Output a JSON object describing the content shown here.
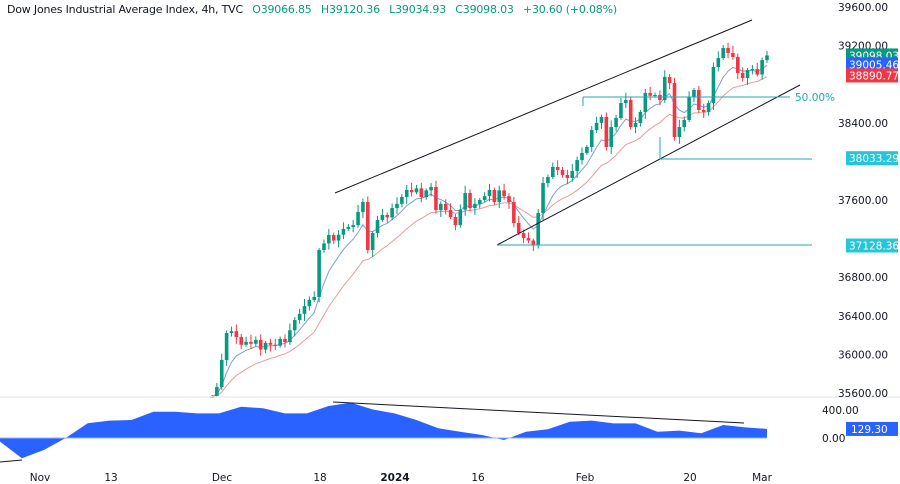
{
  "header": {
    "symbol": "Dow Jones Industrial Average Index, 4h, TVC",
    "open": "O39066.85",
    "high": "H39120.36",
    "low": "L39034.93",
    "close": "C39098.03",
    "change": "+30.60 (+0.08%)"
  },
  "colors": {
    "up": "#089981",
    "down": "#f23645",
    "ma_fast": "#7e9fd8",
    "ma_slow": "#e79b9b",
    "level": "#26a6b8",
    "indicator": "#2962ff"
  },
  "chart_data": [
    {
      "type": "candlestick",
      "title": "Dow Jones Industrial Average Index, 4h, TVC",
      "ylim": [
        35600,
        39600
      ],
      "y_ticks": [
        "39600.00",
        "39200.00",
        "38400.00",
        "37600.00",
        "36800.00",
        "36400.00",
        "36000.00",
        "35600.00"
      ],
      "x_ticks": [
        "Nov",
        "13",
        "Dec",
        "18",
        "2024",
        "16",
        "Feb",
        "20",
        "Mar"
      ],
      "close": [
        35560,
        35662,
        35942,
        36222,
        36240,
        36180,
        36100,
        36130,
        36110,
        36150,
        36050,
        36120,
        36100,
        36090,
        36160,
        36128,
        36250,
        36356,
        36420,
        36500,
        36564,
        36595,
        37082,
        37150,
        37237,
        37180,
        37240,
        37300,
        37320,
        37340,
        37476,
        37579,
        37082,
        37258,
        37393,
        37445,
        37420,
        37517,
        37560,
        37631,
        37704,
        37680,
        37720,
        37631,
        37700,
        37735,
        37496,
        37560,
        37496,
        37424,
        37341,
        37500,
        37673,
        37517,
        37560,
        37600,
        37640,
        37704,
        37579,
        37700,
        37640,
        37579,
        37362,
        37258,
        37206,
        37180,
        37134,
        37465,
        37776,
        37838,
        37942,
        37911,
        37860,
        37828,
        37900,
        38014,
        38087,
        38150,
        38325,
        38400,
        38460,
        38149,
        38356,
        38450,
        38605,
        38636,
        38356,
        38398,
        38512,
        38709,
        38680,
        38688,
        38636,
        38875,
        38812,
        38253,
        38356,
        38429,
        38667,
        38740,
        38533,
        38512,
        38605,
        38978,
        39071,
        39175,
        39123,
        39082,
        38916,
        38864,
        38947,
        38957,
        38900,
        39050,
        39098
      ],
      "price_tags": [
        {
          "label": "39098.03",
          "value": 39098.03,
          "color": "#089981"
        },
        {
          "label": "39005.46",
          "value": 39005.46,
          "color": "#2962ff"
        },
        {
          "label": "38890.77",
          "value": 38890.77,
          "color": "#f23645"
        },
        {
          "label": "38033.29",
          "value": 38033.29,
          "color": "#26c6da"
        },
        {
          "label": "37128.36",
          "value": 37128.36,
          "color": "#26c6da"
        }
      ],
      "fib_label": "50.00%"
    },
    {
      "type": "area",
      "ylim": [
        -300,
        520
      ],
      "y_ticks": [
        "400.00",
        "0.00"
      ],
      "values": [
        -52,
        -290,
        -171,
        0,
        210,
        248,
        257,
        376,
        376,
        352,
        352,
        447,
        424,
        352,
        352,
        457,
        505,
        409,
        352,
        257,
        138,
        90,
        43,
        -29,
        90,
        124,
        233,
        248,
        209,
        209,
        90,
        105,
        67,
        186,
        152,
        129.3
      ],
      "last_label": "129.30"
    }
  ]
}
